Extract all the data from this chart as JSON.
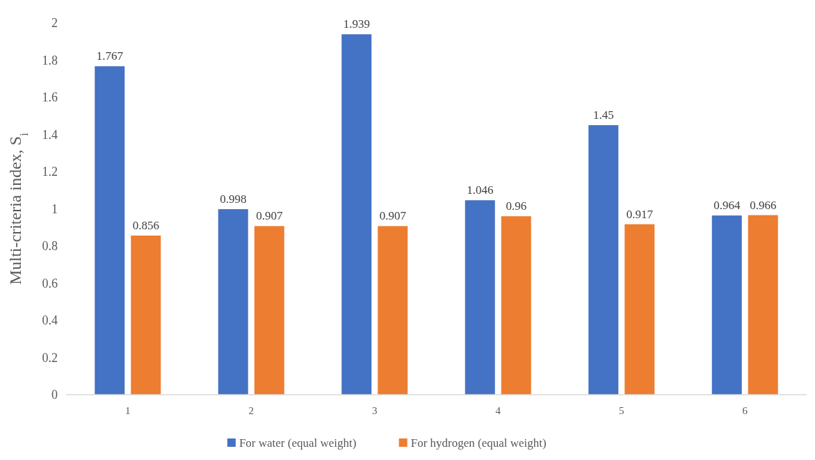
{
  "chart_data": {
    "type": "bar",
    "ylabel": "Multi-criteria index, S$_{i}$",
    "categories": [
      "1",
      "2",
      "3",
      "4",
      "5",
      "6"
    ],
    "series": [
      {
        "name": "For water (equal weight)",
        "color": "#4472c4",
        "values": [
          1.767,
          0.998,
          1.939,
          1.046,
          1.45,
          0.964
        ]
      },
      {
        "name": "For hydrogen (equal weight)",
        "color": "#ed7d31",
        "values": [
          0.856,
          0.907,
          0.907,
          0.96,
          0.917,
          0.966
        ]
      }
    ],
    "ylim": [
      0,
      2
    ],
    "yticks": [
      0,
      0.2,
      0.4,
      0.6,
      0.8,
      1,
      1.2,
      1.4,
      1.6,
      1.8,
      2
    ],
    "data_labels": true,
    "legend": "bottom",
    "grid": false
  }
}
